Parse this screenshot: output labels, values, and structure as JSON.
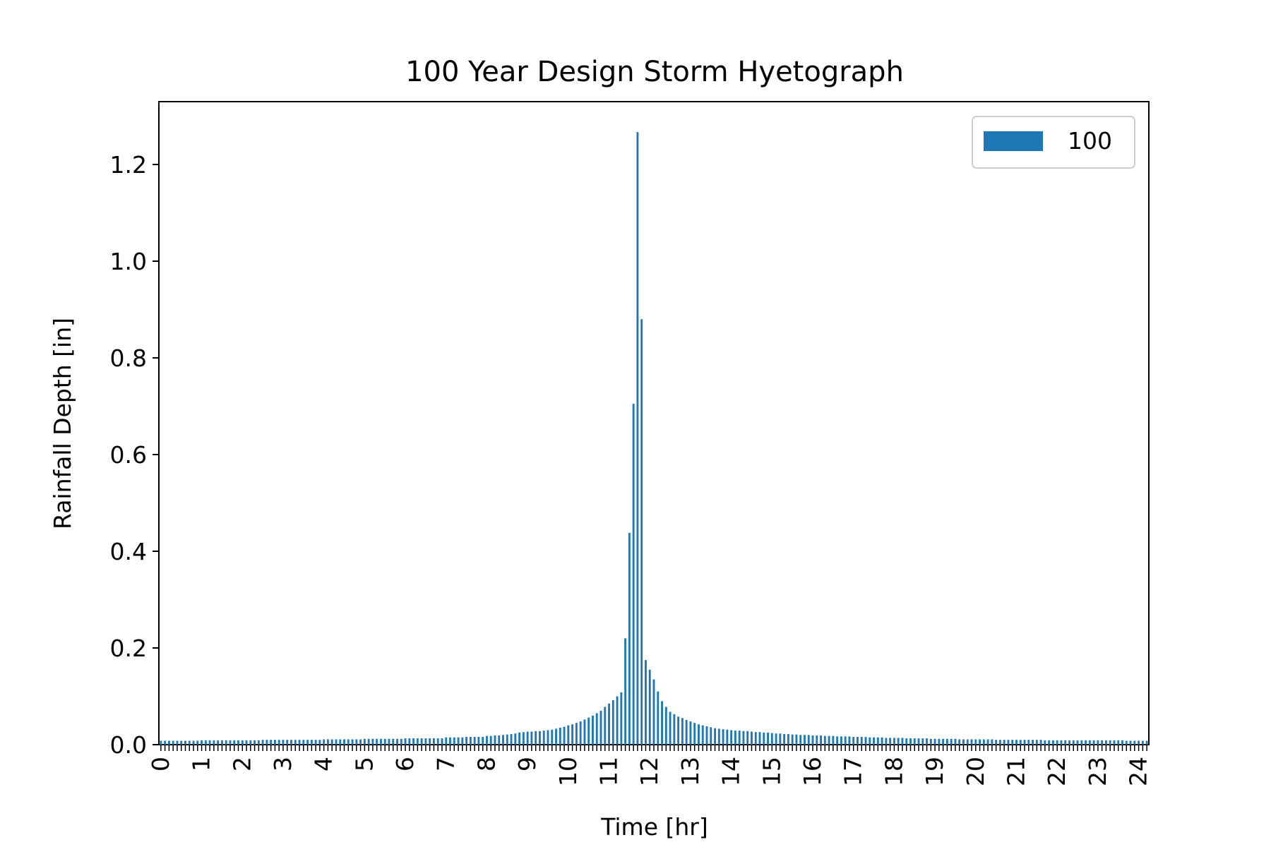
{
  "chart_data": {
    "type": "bar",
    "title": "100 Year Design Storm Hyetograph",
    "xlabel": "Time [hr]",
    "ylabel": "Rainfall Depth [in]",
    "ylim": [
      0,
      1.33
    ],
    "yticks": [
      0.0,
      0.2,
      0.4,
      0.6,
      0.8,
      1.0,
      1.2
    ],
    "ytick_labels": [
      "0.0",
      "0.2",
      "0.4",
      "0.6",
      "0.8",
      "1.0",
      "1.2"
    ],
    "xtick_labels": [
      "0",
      "1",
      "2",
      "3",
      "4",
      "5",
      "6",
      "7",
      "8",
      "9",
      "10",
      "11",
      "12",
      "13",
      "14",
      "15",
      "16",
      "17",
      "18",
      "19",
      "20",
      "21",
      "22",
      "23",
      "24"
    ],
    "x_start_hr": 0,
    "x_step_hr": 0.1,
    "legend": {
      "position": "top-right",
      "entries": [
        "100"
      ]
    },
    "colors": {
      "bar": "#1f77b4"
    },
    "series": [
      {
        "name": "100",
        "values": [
          0.008,
          0.008,
          0.008,
          0.008,
          0.008,
          0.008,
          0.008,
          0.008,
          0.008,
          0.008,
          0.009,
          0.009,
          0.009,
          0.009,
          0.009,
          0.009,
          0.009,
          0.009,
          0.009,
          0.009,
          0.009,
          0.009,
          0.009,
          0.009,
          0.009,
          0.01,
          0.01,
          0.01,
          0.01,
          0.01,
          0.01,
          0.01,
          0.01,
          0.01,
          0.01,
          0.01,
          0.01,
          0.01,
          0.01,
          0.01,
          0.011,
          0.011,
          0.011,
          0.011,
          0.011,
          0.011,
          0.011,
          0.011,
          0.011,
          0.011,
          0.012,
          0.012,
          0.012,
          0.012,
          0.012,
          0.012,
          0.012,
          0.012,
          0.012,
          0.012,
          0.013,
          0.013,
          0.013,
          0.013,
          0.013,
          0.013,
          0.013,
          0.013,
          0.013,
          0.013,
          0.015,
          0.015,
          0.015,
          0.015,
          0.015,
          0.016,
          0.016,
          0.016,
          0.016,
          0.016,
          0.018,
          0.018,
          0.019,
          0.019,
          0.02,
          0.021,
          0.022,
          0.023,
          0.025,
          0.026,
          0.027,
          0.027,
          0.028,
          0.028,
          0.029,
          0.03,
          0.031,
          0.033,
          0.035,
          0.037,
          0.04,
          0.042,
          0.045,
          0.048,
          0.052,
          0.056,
          0.06,
          0.065,
          0.07,
          0.078,
          0.085,
          0.092,
          0.1,
          0.108,
          0.22,
          0.438,
          0.705,
          1.267,
          0.88,
          0.175,
          0.155,
          0.135,
          0.11,
          0.09,
          0.078,
          0.068,
          0.063,
          0.058,
          0.055,
          0.051,
          0.048,
          0.045,
          0.042,
          0.04,
          0.038,
          0.036,
          0.034,
          0.033,
          0.032,
          0.031,
          0.03,
          0.029,
          0.029,
          0.028,
          0.028,
          0.027,
          0.026,
          0.026,
          0.025,
          0.025,
          0.024,
          0.023,
          0.023,
          0.022,
          0.022,
          0.021,
          0.021,
          0.02,
          0.02,
          0.02,
          0.019,
          0.019,
          0.019,
          0.018,
          0.018,
          0.018,
          0.017,
          0.017,
          0.017,
          0.017,
          0.016,
          0.016,
          0.016,
          0.016,
          0.015,
          0.015,
          0.015,
          0.015,
          0.014,
          0.014,
          0.014,
          0.014,
          0.014,
          0.013,
          0.013,
          0.013,
          0.013,
          0.013,
          0.013,
          0.012,
          0.012,
          0.012,
          0.012,
          0.012,
          0.012,
          0.012,
          0.011,
          0.011,
          0.011,
          0.011,
          0.011,
          0.011,
          0.011,
          0.011,
          0.011,
          0.01,
          0.01,
          0.01,
          0.01,
          0.01,
          0.01,
          0.01,
          0.01,
          0.01,
          0.01,
          0.01,
          0.01,
          0.009,
          0.009,
          0.009,
          0.009,
          0.009,
          0.009,
          0.009,
          0.009,
          0.009,
          0.009,
          0.009,
          0.009,
          0.009,
          0.009,
          0.009,
          0.009,
          0.009,
          0.009,
          0.009,
          0.009,
          0.008,
          0.008,
          0.008,
          0.008,
          0.008,
          0.008
        ]
      }
    ]
  }
}
